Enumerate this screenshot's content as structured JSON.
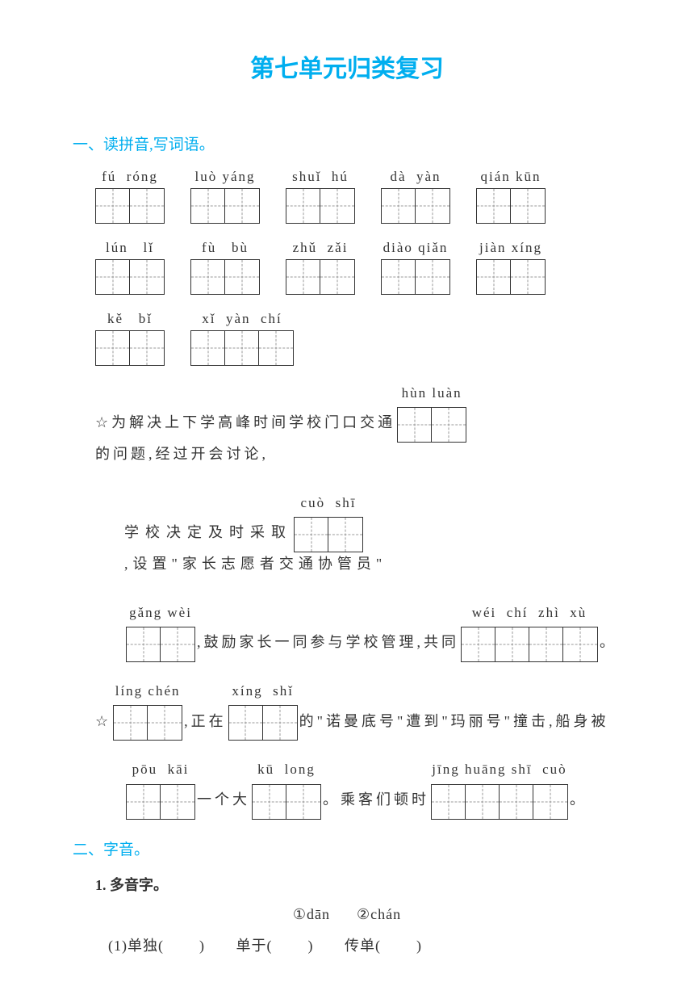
{
  "title": "第七单元归类复习",
  "section1": {
    "header": "一、读拼音,写词语。",
    "row1": [
      {
        "pinyin": "fú  róng",
        "cells": 2
      },
      {
        "pinyin": "luò yáng",
        "cells": 2
      },
      {
        "pinyin": "shuǐ  hú",
        "cells": 2
      },
      {
        "pinyin": "dà  yàn",
        "cells": 2
      },
      {
        "pinyin": "qián kūn",
        "cells": 2
      }
    ],
    "row2": [
      {
        "pinyin": "lún   lǐ",
        "cells": 2
      },
      {
        "pinyin": "fù   bù",
        "cells": 2
      },
      {
        "pinyin": "zhǔ  zǎi",
        "cells": 2
      },
      {
        "pinyin": "diào qiǎn",
        "cells": 2
      },
      {
        "pinyin": "jiàn xíng",
        "cells": 2
      }
    ],
    "row3": [
      {
        "pinyin": "kě   bǐ",
        "cells": 2
      },
      {
        "pinyin": "xǐ  yàn  chí",
        "cells": 3
      }
    ],
    "line1": {
      "t1": "为解决上下学高峰时间学校门口交通",
      "g1": {
        "pinyin": "hùn luàn",
        "cells": 2
      },
      "t2": "的问题,经过开会讨论,"
    },
    "line2": {
      "t1": "学校决定及时采取",
      "g1": {
        "pinyin": "cuò  shī",
        "cells": 2
      },
      "t2": ",设置\"家长志愿者交通协管员\""
    },
    "line3": {
      "g1": {
        "pinyin": "gǎng wèi",
        "cells": 2
      },
      "t1": ",鼓励家长一同参与学校管理,共同",
      "g2": {
        "pinyin": "wéi  chí  zhì  xù",
        "cells": 4
      },
      "t2": "。"
    },
    "line4": {
      "g1": {
        "pinyin": "líng chén",
        "cells": 2
      },
      "t1": ",正在",
      "g2": {
        "pinyin": "xíng  shǐ",
        "cells": 2
      },
      "t2": "的\"诺曼底号\"遭到\"玛丽号\"撞击,船身被"
    },
    "line5": {
      "g1": {
        "pinyin": "pōu  kāi",
        "cells": 2
      },
      "t1": "一个大",
      "g2": {
        "pinyin": "kū  long",
        "cells": 2
      },
      "t2": "。乘客们顿时",
      "g3": {
        "pinyin": "jīng huāng shī  cuò",
        "cells": 4
      },
      "t3": "。"
    }
  },
  "section2": {
    "header": "二、字音。",
    "sub1": "1. 多音字。",
    "options": "①dān      ②chán",
    "q1": "(1)单独(        )       单于(        )       传单(        )"
  },
  "star": "☆"
}
